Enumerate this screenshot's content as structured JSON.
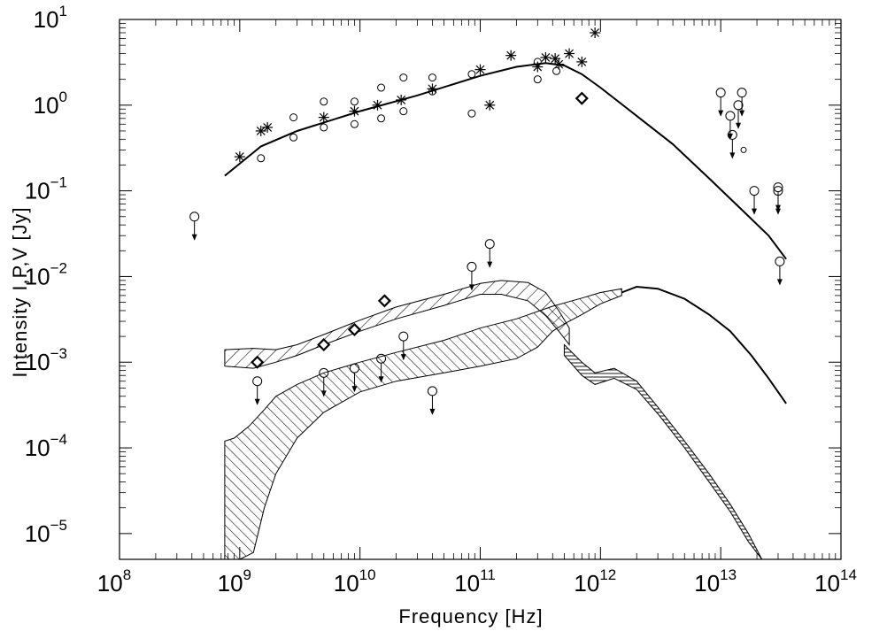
{
  "chart_data": {
    "type": "scatter",
    "title": "",
    "xlabel": "Frequency [Hz]",
    "ylabel": "Intensity I,P,V [Jy]",
    "x_scale": "log",
    "y_scale": "log",
    "xlim": [
      100000000.0,
      100000000000000.0
    ],
    "ylim": [
      5e-06,
      10
    ],
    "x_ticks": [
      {
        "value": 100000000.0,
        "base": "10",
        "exp": "8"
      },
      {
        "value": 1000000000.0,
        "base": "10",
        "exp": "9"
      },
      {
        "value": 10000000000.0,
        "base": "10",
        "exp": "10"
      },
      {
        "value": 100000000000.0,
        "base": "10",
        "exp": "11"
      },
      {
        "value": 1000000000000.0,
        "base": "10",
        "exp": "12"
      },
      {
        "value": 10000000000000.0,
        "base": "10",
        "exp": "13"
      },
      {
        "value": 100000000000000.0,
        "base": "10",
        "exp": "14"
      }
    ],
    "y_ticks": [
      {
        "value": 1e-05,
        "base": "10",
        "exp": "−5"
      },
      {
        "value": 0.0001,
        "base": "10",
        "exp": "−4"
      },
      {
        "value": 0.001,
        "base": "10",
        "exp": "−3"
      },
      {
        "value": 0.01,
        "base": "10",
        "exp": "−2"
      },
      {
        "value": 0.1,
        "base": "10",
        "exp": "−1"
      },
      {
        "value": 1,
        "base": "10",
        "exp": "0"
      },
      {
        "value": 10,
        "base": "10",
        "exp": "1"
      }
    ],
    "grid": false,
    "series": [
      {
        "kind": "line",
        "points": [
          [
            750000000.0,
            0.15
          ],
          [
            1500000000.0,
            0.33
          ],
          [
            3000000000.0,
            0.5
          ],
          [
            10000000000.0,
            0.85
          ],
          [
            30000000000.0,
            1.3
          ],
          [
            100000000000.0,
            2.2
          ],
          [
            200000000000.0,
            2.8
          ],
          [
            350000000000.0,
            3.1
          ],
          [
            500000000000.0,
            2.9
          ],
          [
            700000000000.0,
            2.3
          ],
          [
            1000000000000.0,
            1.6
          ],
          [
            2000000000000.0,
            0.75
          ],
          [
            4000000000000.0,
            0.35
          ],
          [
            8000000000000.0,
            0.14
          ],
          [
            15000000000000.0,
            0.06
          ],
          [
            25000000000000.0,
            0.03
          ],
          [
            35000000000000.0,
            0.016
          ]
        ]
      },
      {
        "kind": "line",
        "points": [
          [
            1500000000000.0,
            0.0065
          ],
          [
            2000000000000.0,
            0.0076
          ],
          [
            3000000000000.0,
            0.0072
          ],
          [
            5000000000000.0,
            0.0055
          ],
          [
            8000000000000.0,
            0.0036
          ],
          [
            12000000000000.0,
            0.0023
          ],
          [
            18000000000000.0,
            0.0012
          ],
          [
            25000000000000.0,
            0.00065
          ],
          [
            35000000000000.0,
            0.00033
          ]
        ]
      },
      {
        "kind": "band",
        "hatch": "forward",
        "upper": [
          [
            750000000.0,
            0.0014
          ],
          [
            1300000000.0,
            0.00145
          ],
          [
            2000000000.0,
            0.0014
          ],
          [
            3000000000.0,
            0.0016
          ],
          [
            5000000000.0,
            0.0021
          ],
          [
            10000000000.0,
            0.0031
          ],
          [
            20000000000.0,
            0.0044
          ],
          [
            50000000000.0,
            0.0062
          ],
          [
            100000000000.0,
            0.0083
          ],
          [
            150000000000.0,
            0.009
          ],
          [
            250000000000.0,
            0.0085
          ],
          [
            350000000000.0,
            0.0065
          ],
          [
            450000000000.0,
            0.004
          ],
          [
            550000000000.0,
            0.0025
          ]
        ],
        "lower": [
          [
            750000000.0,
            0.0009
          ],
          [
            1300000000.0,
            0.00085
          ],
          [
            2000000000.0,
            0.001
          ],
          [
            3000000000.0,
            0.0012
          ],
          [
            5000000000.0,
            0.0016
          ],
          [
            10000000000.0,
            0.0023
          ],
          [
            20000000000.0,
            0.0032
          ],
          [
            50000000000.0,
            0.0046
          ],
          [
            100000000000.0,
            0.0062
          ],
          [
            150000000000.0,
            0.0062
          ],
          [
            250000000000.0,
            0.0052
          ],
          [
            350000000000.0,
            0.0035
          ],
          [
            450000000000.0,
            0.0023
          ],
          [
            550000000000.0,
            0.0016
          ]
        ]
      },
      {
        "kind": "band",
        "hatch": "backward",
        "upper": [
          [
            750000000.0,
            0.00012
          ],
          [
            900000000.0,
            0.00013
          ],
          [
            1200000000.0,
            0.00018
          ],
          [
            1600000000.0,
            0.00028
          ],
          [
            2000000000.0,
            0.0004
          ],
          [
            3000000000.0,
            0.00055
          ],
          [
            5000000000.0,
            0.00075
          ],
          [
            10000000000.0,
            0.001
          ],
          [
            20000000000.0,
            0.0013
          ],
          [
            50000000000.0,
            0.0018
          ],
          [
            100000000000.0,
            0.0025
          ],
          [
            200000000000.0,
            0.0032
          ],
          [
            400000000000.0,
            0.0045
          ],
          [
            700000000000.0,
            0.0056
          ],
          [
            1000000000000.0,
            0.0065
          ],
          [
            1500000000000.0,
            0.0072
          ]
        ],
        "lower": [
          [
            750000000.0,
            5e-06
          ],
          [
            1000000000.0,
            5e-06
          ],
          [
            1300000000.0,
            6e-06
          ],
          [
            1600000000.0,
            2e-05
          ],
          [
            2000000000.0,
            5e-05
          ],
          [
            3000000000.0,
            0.00013
          ],
          [
            5000000000.0,
            0.00026
          ],
          [
            10000000000.0,
            0.00045
          ],
          [
            20000000000.0,
            0.0006
          ],
          [
            50000000000.0,
            0.00075
          ],
          [
            100000000000.0,
            0.0009
          ],
          [
            200000000000.0,
            0.0011
          ],
          [
            300000000000.0,
            0.0015
          ],
          [
            400000000000.0,
            0.0023
          ],
          [
            500000000000.0,
            0.0028
          ],
          [
            700000000000.0,
            0.0036
          ],
          [
            1000000000000.0,
            0.0048
          ],
          [
            1500000000000.0,
            0.006
          ]
        ]
      },
      {
        "kind": "band",
        "hatch": "horizontal",
        "upper": [
          [
            500000000000.0,
            0.0016
          ],
          [
            700000000000.0,
            0.001
          ],
          [
            900000000000.0,
            0.00075
          ],
          [
            1300000000000.0,
            0.00085
          ],
          [
            2000000000000.0,
            0.0006
          ],
          [
            3000000000000.0,
            0.0003
          ],
          [
            5000000000000.0,
            0.00012
          ],
          [
            8000000000000.0,
            5e-05
          ],
          [
            12000000000000.0,
            2.2e-05
          ],
          [
            17000000000000.0,
            1e-05
          ],
          [
            22000000000000.0,
            5e-06
          ]
        ],
        "lower": [
          [
            500000000000.0,
            0.0012
          ],
          [
            700000000000.0,
            0.0007
          ],
          [
            900000000000.0,
            0.00055
          ],
          [
            1300000000000.0,
            0.00065
          ],
          [
            2000000000000.0,
            0.00048
          ],
          [
            3000000000000.0,
            0.00025
          ],
          [
            5000000000000.0,
            0.0001
          ],
          [
            8000000000000.0,
            4e-05
          ],
          [
            12000000000000.0,
            1.8e-05
          ],
          [
            17000000000000.0,
            8e-06
          ],
          [
            22000000000000.0,
            5e-06
          ]
        ]
      },
      {
        "kind": "points",
        "marker": "asterisk",
        "points": [
          [
            1000000000.0,
            0.25
          ],
          [
            1500000000.0,
            0.5
          ],
          [
            1700000000.0,
            0.55
          ],
          [
            5000000000.0,
            0.72
          ],
          [
            9000000000.0,
            0.85
          ],
          [
            14000000000.0,
            1.0
          ],
          [
            22000000000.0,
            1.15
          ],
          [
            40000000000.0,
            1.55
          ],
          [
            100000000000.0,
            2.6
          ],
          [
            120000000000.0,
            1.0
          ],
          [
            180000000000.0,
            3.8
          ],
          [
            300000000000.0,
            2.8
          ],
          [
            350000000000.0,
            3.6
          ],
          [
            420000000000.0,
            3.5
          ],
          [
            450000000000.0,
            3.0
          ],
          [
            550000000000.0,
            4.0
          ],
          [
            700000000000.0,
            3.2
          ],
          [
            900000000000.0,
            7.0
          ]
        ]
      },
      {
        "kind": "points",
        "marker": "circle",
        "points": [
          [
            1500000000.0,
            0.24
          ],
          [
            2800000000.0,
            0.42
          ],
          [
            2800000000.0,
            0.72
          ],
          [
            5000000000.0,
            0.55
          ],
          [
            5000000000.0,
            1.1
          ],
          [
            9000000000.0,
            0.6
          ],
          [
            9000000000.0,
            1.1
          ],
          [
            15000000000.0,
            0.7
          ],
          [
            15000000000.0,
            1.6
          ],
          [
            23000000000.0,
            0.85
          ],
          [
            23000000000.0,
            2.1
          ],
          [
            40000000000.0,
            1.45
          ],
          [
            40000000000.0,
            2.1
          ],
          [
            85000000000.0,
            0.8
          ],
          [
            85000000000.0,
            2.3
          ],
          [
            300000000000.0,
            2.0
          ],
          [
            300000000000.0,
            3.2
          ],
          [
            430000000000.0,
            2.5
          ]
        ]
      },
      {
        "kind": "points",
        "marker": "diamond",
        "points": [
          [
            1400000000.0,
            0.001
          ],
          [
            5000000000.0,
            0.0016
          ],
          [
            9000000000.0,
            0.0024
          ],
          [
            16000000000.0,
            0.0052
          ],
          [
            700000000000.0,
            1.2
          ]
        ]
      },
      {
        "kind": "upper_limits",
        "points": [
          [
            420000000.0,
            0.05
          ],
          [
            1400000000.0,
            0.0006
          ],
          [
            5000000000.0,
            0.00075
          ],
          [
            9000000000.0,
            0.00085
          ],
          [
            15000000000.0,
            0.0011
          ],
          [
            23000000000.0,
            0.002
          ],
          [
            40000000000.0,
            0.00046
          ],
          [
            85000000000.0,
            0.013
          ],
          [
            120000000000.0,
            0.024
          ],
          [
            10000000000000.0,
            1.4
          ],
          [
            12000000000000.0,
            0.75
          ],
          [
            12500000000000.0,
            0.45
          ],
          [
            14000000000000.0,
            1.0
          ],
          [
            15000000000000.0,
            1.4
          ],
          [
            19000000000000.0,
            0.1
          ],
          [
            30000000000000.0,
            0.11
          ],
          [
            30000000000000.0,
            0.1
          ],
          [
            31000000000000.0,
            0.015
          ]
        ]
      },
      {
        "kind": "points",
        "marker": "small-circle",
        "points": [
          [
            15500000000000.0,
            0.3
          ]
        ]
      }
    ]
  }
}
